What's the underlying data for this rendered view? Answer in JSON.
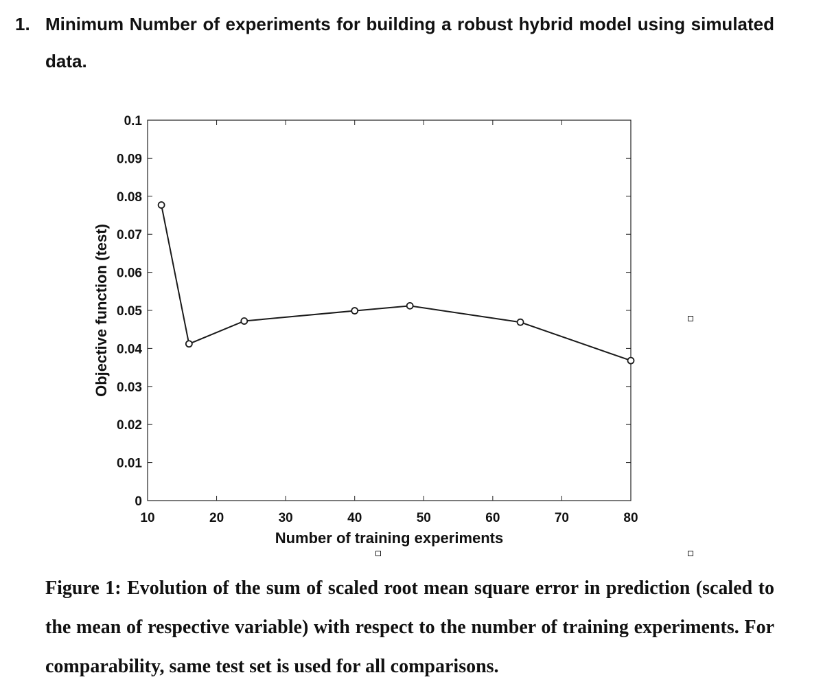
{
  "heading": {
    "number": "1.",
    "text": "Minimum Number of experiments for building a robust hybrid model using simulated data."
  },
  "caption": "Figure 1: Evolution of the sum of scaled root mean square error in prediction (scaled to the mean of respective variable) with respect to the number of training experiments. For comparability, same test set is used for all comparisons.",
  "colors": {
    "line": "#1a1a1a",
    "axis": "#222222"
  },
  "chart_data": {
    "type": "line",
    "title": "",
    "xlabel": "Number of training experiments",
    "ylabel": "Objective function (test)",
    "xlim": [
      10,
      80
    ],
    "ylim": [
      0,
      0.1
    ],
    "xticks": [
      10,
      20,
      30,
      40,
      50,
      60,
      70,
      80
    ],
    "yticks": [
      0,
      0.01,
      0.02,
      0.03,
      0.04,
      0.05,
      0.06,
      0.07,
      0.08,
      0.09,
      0.1
    ],
    "xtick_labels": [
      "10",
      "20",
      "30",
      "40",
      "50",
      "60",
      "70",
      "80"
    ],
    "ytick_labels": [
      "0",
      "0.01",
      "0.02",
      "0.03",
      "0.04",
      "0.05",
      "0.06",
      "0.07",
      "0.08",
      "0.09",
      "0.1"
    ],
    "grid": false,
    "marker": "open-circle",
    "series": [
      {
        "x": [
          12,
          16,
          24,
          40,
          48,
          64,
          80
        ],
        "y": [
          0.0777,
          0.0412,
          0.0472,
          0.0499,
          0.0512,
          0.0469,
          0.0368
        ]
      }
    ]
  }
}
